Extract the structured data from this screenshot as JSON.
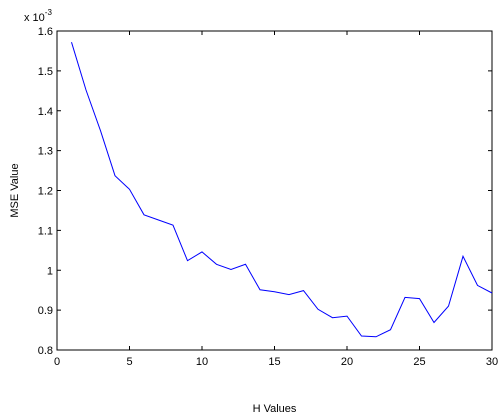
{
  "chart_data": {
    "type": "line",
    "title": "",
    "xlabel": "H Values",
    "ylabel": "MSE Value",
    "scale_factor_label": "x 10",
    "scale_factor_exponent": "-3",
    "xlim": [
      0,
      30
    ],
    "ylim": [
      0.8,
      1.6
    ],
    "xticks": [
      0,
      5,
      10,
      15,
      20,
      25,
      30
    ],
    "xtick_labels": [
      "0",
      "5",
      "10",
      "15",
      "20",
      "25",
      "30"
    ],
    "yticks": [
      0.8,
      0.9,
      1.0,
      1.1,
      1.2,
      1.3,
      1.4,
      1.5,
      1.6
    ],
    "ytick_labels": [
      "0.8",
      "0.9",
      "1",
      "1.1",
      "1.2",
      "1.3",
      "1.4",
      "1.5",
      "1.6"
    ],
    "grid": false,
    "line_color": "#0000ff",
    "series": [
      {
        "x": [
          1,
          2,
          3,
          4,
          5,
          6,
          7,
          8,
          9,
          10,
          11,
          12,
          13,
          14,
          15,
          16,
          17,
          18,
          19,
          20,
          21,
          22,
          23,
          24,
          25,
          26,
          27,
          28,
          29,
          30
        ],
        "y": [
          1.572,
          1.452,
          1.35,
          1.237,
          1.203,
          1.139,
          1.126,
          1.113,
          1.024,
          1.046,
          1.015,
          1.002,
          1.015,
          0.951,
          0.946,
          0.939,
          0.949,
          0.902,
          0.881,
          0.885,
          0.835,
          0.833,
          0.851,
          0.932,
          0.929,
          0.869,
          0.91,
          1.035,
          0.962,
          0.943
        ]
      }
    ]
  }
}
